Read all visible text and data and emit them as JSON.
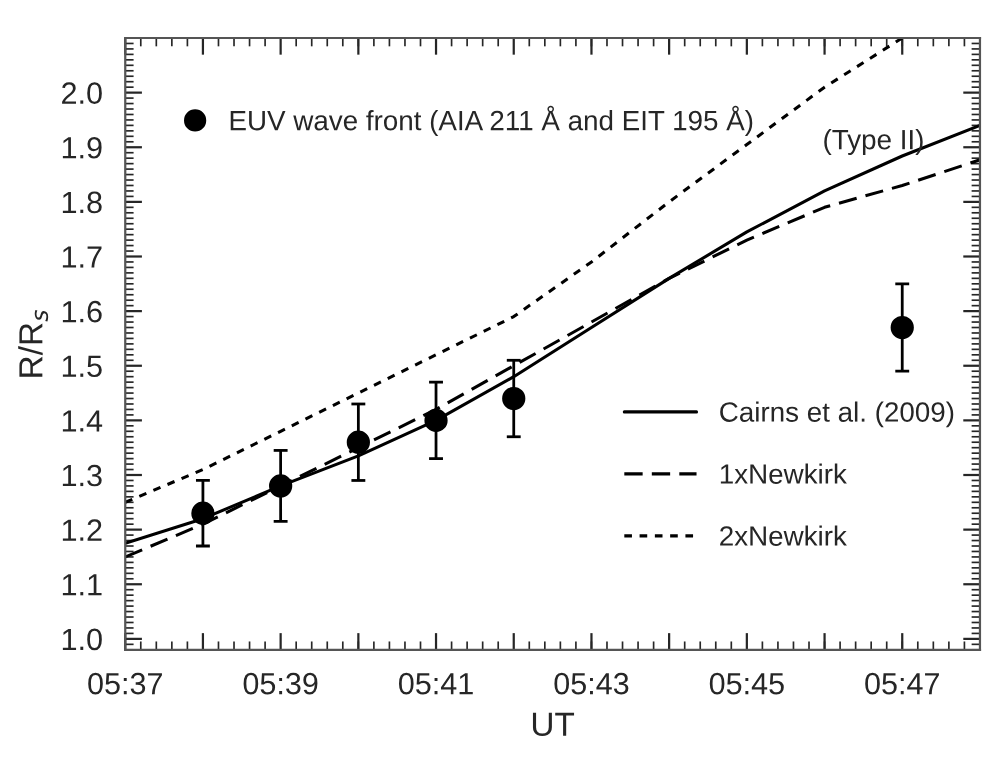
{
  "chart_data": {
    "type": "line",
    "xlabel": "UT",
    "ylabel": "R/R$_{s}$",
    "xlim": [
      5.61667,
      5.8
    ],
    "ylim": [
      0.98,
      2.1
    ],
    "xticks": [
      {
        "value": 5.61667,
        "label": "05:37"
      },
      {
        "value": 5.63333,
        "label": null
      },
      {
        "value": 5.65,
        "label": "05:39"
      },
      {
        "value": 5.66667,
        "label": null
      },
      {
        "value": 5.68333,
        "label": "05:41"
      },
      {
        "value": 5.7,
        "label": null
      },
      {
        "value": 5.71667,
        "label": "05:43"
      },
      {
        "value": 5.73333,
        "label": null
      },
      {
        "value": 5.75,
        "label": "05:45"
      },
      {
        "value": 5.76667,
        "label": null
      },
      {
        "value": 5.78333,
        "label": "05:47"
      }
    ],
    "yticks": [
      {
        "value": 1.0,
        "label": "1.0"
      },
      1.1,
      1.2,
      1.3,
      1.4,
      1.5,
      1.6,
      1.7,
      1.8,
      1.9,
      {
        "value": 2.0,
        "label": "2.0"
      }
    ],
    "grid": false,
    "legend": "top right",
    "annotations": [
      "(Type II)"
    ],
    "series": [
      {
        "name": "EUV wave front (AIA 211 Å and EIT 195 Å)",
        "type": "scatter",
        "marker": "circle",
        "color": "#000000",
        "x": [
          5.63333,
          5.65,
          5.66667,
          5.68333,
          5.7,
          5.78333
        ],
        "values": [
          1.23,
          1.28,
          1.36,
          1.4,
          1.44,
          1.57
        ],
        "errors": [
          0.06,
          0.065,
          0.07,
          0.07,
          0.07,
          0.08
        ]
      },
      {
        "name": "Cairns et al. (2009)",
        "line_style": "solid",
        "color": "#000000",
        "x": [
          5.61667,
          5.63333,
          5.65,
          5.66667,
          5.68333,
          5.7,
          5.71667,
          5.73333,
          5.75,
          5.76667,
          5.78333,
          5.8
        ],
        "values": [
          1.175,
          1.22,
          1.28,
          1.335,
          1.4,
          1.48,
          1.57,
          1.66,
          1.745,
          1.82,
          1.884,
          1.94
        ]
      },
      {
        "name": "1xNewkirk",
        "line_style": "dashed",
        "color": "#000000",
        "x": [
          5.61667,
          5.63333,
          5.65,
          5.66667,
          5.68333,
          5.7,
          5.71667,
          5.73333,
          5.75,
          5.76667,
          5.78333,
          5.8
        ],
        "values": [
          1.15,
          1.21,
          1.28,
          1.35,
          1.42,
          1.5,
          1.58,
          1.66,
          1.73,
          1.79,
          1.83,
          1.877
        ]
      },
      {
        "name": "2xNewkirk",
        "line_style": "dotted",
        "color": "#000000",
        "x": [
          5.61667,
          5.63333,
          5.65,
          5.66667,
          5.68333,
          5.7,
          5.71667,
          5.73333,
          5.75,
          5.76667,
          5.78333
        ],
        "values": [
          1.25,
          1.31,
          1.38,
          1.45,
          1.52,
          1.59,
          1.69,
          1.8,
          1.905,
          2.01,
          2.1
        ]
      }
    ]
  }
}
